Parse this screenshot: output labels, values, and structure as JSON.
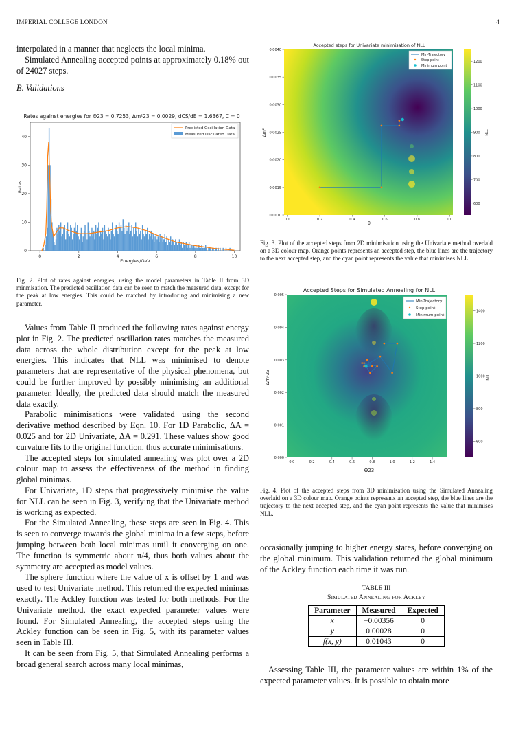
{
  "header": {
    "institution": "IMPERIAL COLLEGE LONDON",
    "page_number": "4"
  },
  "left": {
    "p1": "interpolated in a manner that neglects the local minima.",
    "p2": "Simulated Annealing accepted points at approximately 0.18% out of 24027 steps.",
    "section": "B. Validations",
    "fig2_caption": "Fig. 2.   Plot of rates against energies, using the model parameters in Table II from 3D minmisation. The predicted oscillation data can be seen to match the measured data, except for the peak at low energies. This could be matched by introducing and minimising a new parameter.",
    "p3": "Values from Table II produced the following rates against energy plot in Fig. 2. The predicted oscillation rates matches the measured data across the whole distribution except for the peak at low energies. This indicates that NLL was minimised to denote parameters that are representative of the physical phenomena, but could be further improved by possibly minimising an additional parameter. Ideally, the predicted data should match the measured data exactly.",
    "p4": "Parabolic minimisations were validated using the second derivative method described by Eqn. 10. For 1D Parabolic, ΔA = 0.025 and for 2D Univariate, ΔA = 0.291. These values show good curvature fits to the original function, thus accurate minimisations.",
    "p5": "The accepted steps for simulated annealing was plot over a 2D colour map to assess the effectiveness of the method in finding global minimas.",
    "p6": "For Univariate, 1D steps that progressively minimise the value for NLL can be seen in Fig. 3, verifying that the Univariate method is working as expected.",
    "p7": "For the Simulated Annealing, these steps are seen in Fig. 4. This is seen to converge towards the global minima in a few steps, before jumping between both local minimas until it converging on one. The function is symmetric about π/4, thus both values about the symmetry are accepted as model values.",
    "p8": "The sphere function where the value of x is offset by 1 and was used to test Univariate method. This returned the expected minimas exactly. The Ackley function was tested for both methods. For the Univariate method, the exact expected parameter values were found. For Simulated Annealing, the accepted steps using the Ackley function can be seen in Fig. 5, with its parameter values seen in Table III.",
    "p9": "It can be seen from Fig. 5, that Simulated Annealing performs a broad general search across many local minimas,"
  },
  "right": {
    "fig3_caption": "Fig. 3.   Plot of the accepted steps from 2D minimisation using the Univariate method overlaid on a 3D colour map. Orange points represents an accepted step, the blue lines are the trajectory to the next accepted step, and the cyan point represents the value that minimises NLL.",
    "fig4_caption": "Fig. 4.   Plot of the accepted steps from 3D minimisation using the Simulated Annealing overlaid on a 3D colour map. Orange points represents an accepted step, the blue lines are the trajectory to the next accepted step, and the cyan point represents the value that minimises NLL.",
    "p1": "occasionally jumping to higher energy states, before converging on the global minimum. This validation returned the global minimum of the Ackley function each time it was run.",
    "table_label": "TABLE III",
    "table_title": "Simulated Annealing for Ackley",
    "table_headers": [
      "Parameter",
      "Measured",
      "Expected"
    ],
    "table_rows": [
      [
        "x",
        "−0.00356",
        "0"
      ],
      [
        "y",
        "0.00028",
        "0"
      ],
      [
        "f(x, y)",
        "0.01043",
        "0"
      ]
    ],
    "p2": "Assessing Table III, the parameter values are within 1% of the expected parameter values. It is possible to obtain more"
  },
  "chart_data": [
    {
      "type": "bar",
      "title": "Rates against energies for Θ23 = 0.7253, Δm²23 = 0.0029, dCS/dE = 1.6367, C = 0",
      "xlabel": "Energies/GeV",
      "ylabel": "Rates",
      "xlim": [
        0,
        10
      ],
      "ylim": [
        0,
        45
      ],
      "xticks": [
        "0",
        "2",
        "4",
        "6",
        "8",
        "10"
      ],
      "yticks": [
        "0",
        "10",
        "20",
        "30",
        "40"
      ],
      "legend_position": "top-right",
      "series": [
        {
          "name": "Predicted Oscillation Data",
          "kind": "line",
          "color": "#ff7f0e"
        },
        {
          "name": "Measured Oscillated Data",
          "kind": "bar",
          "color": "#5b9bd5"
        }
      ],
      "measured_x": [
        0.025,
        0.075,
        0.125,
        0.175,
        0.225,
        0.275,
        0.325,
        0.375,
        0.425,
        0.475,
        0.525,
        0.575,
        0.625,
        0.675,
        0.725,
        0.775,
        0.825,
        0.875,
        0.925,
        0.975,
        1.025,
        1.075,
        1.125,
        1.175,
        1.225,
        1.275,
        1.325,
        1.375,
        1.425,
        1.475,
        1.525,
        1.575,
        1.625,
        1.675,
        1.725,
        1.775,
        1.825,
        1.875,
        1.925,
        1.975,
        2.025,
        2.075,
        2.125,
        2.175,
        2.225,
        2.275,
        2.325,
        2.375,
        2.425,
        2.475,
        2.525,
        2.575,
        2.625,
        2.675,
        2.725,
        2.775,
        2.825,
        2.875,
        2.925,
        2.975,
        3.025,
        3.075,
        3.125,
        3.175,
        3.225,
        3.275,
        3.325,
        3.375,
        3.425,
        3.475,
        3.525,
        3.575,
        3.625,
        3.675,
        3.725,
        3.775,
        3.825,
        3.875,
        3.925,
        3.975,
        4.025,
        4.075,
        4.125,
        4.175,
        4.225,
        4.275,
        4.325,
        4.375,
        4.425,
        4.475,
        4.525,
        4.575,
        4.625,
        4.675,
        4.725,
        4.775,
        4.825,
        4.875,
        4.925,
        4.975,
        5.025,
        5.075,
        5.125,
        5.175,
        5.225,
        5.275,
        5.325,
        5.375,
        5.425,
        5.475,
        5.525,
        5.575,
        5.625,
        5.675,
        5.725,
        5.775,
        5.825,
        5.875,
        5.925,
        5.975,
        6.025,
        6.075,
        6.125,
        6.175,
        6.225,
        6.275,
        6.325,
        6.375,
        6.425,
        6.475,
        6.525,
        6.575,
        6.625,
        6.675,
        6.725,
        6.775,
        6.825,
        6.875,
        6.925,
        6.975,
        7.025,
        7.075,
        7.125,
        7.175,
        7.225,
        7.275,
        7.325,
        7.375,
        7.425,
        7.475,
        7.525,
        7.575,
        7.625,
        7.675,
        7.725,
        7.775,
        7.825,
        7.875,
        7.925,
        7.975,
        8.025,
        8.075,
        8.125,
        8.175,
        8.225,
        8.275,
        8.325,
        8.375,
        8.425,
        8.475,
        8.525,
        8.575,
        8.625,
        8.675,
        8.725,
        8.775,
        8.825,
        8.875,
        8.925,
        8.975,
        9.025,
        9.075,
        9.125,
        9.175,
        9.225,
        9.275,
        9.325,
        9.375,
        9.425,
        9.475,
        9.525,
        9.575,
        9.625,
        9.675,
        9.725,
        9.775,
        9.825,
        9.875,
        9.925,
        9.975
      ],
      "measured_y": [
        0,
        0,
        0,
        1,
        0,
        2,
        5,
        8,
        30,
        43,
        30,
        18,
        10,
        6,
        3,
        2,
        4,
        8,
        6,
        9,
        7,
        10,
        5,
        6,
        8,
        9,
        4,
        7,
        10,
        6,
        5,
        9,
        8,
        4,
        6,
        8,
        10,
        7,
        9,
        5,
        4,
        6,
        8,
        3,
        5,
        7,
        9,
        6,
        4,
        10,
        7,
        5,
        6,
        8,
        5,
        7,
        4,
        9,
        6,
        8,
        10,
        5,
        7,
        6,
        8,
        4,
        9,
        7,
        6,
        5,
        8,
        6,
        4,
        7,
        10,
        6,
        5,
        8,
        9,
        7,
        6,
        10,
        8,
        9,
        7,
        11,
        8,
        6,
        9,
        7,
        8,
        10,
        6,
        7,
        9,
        5,
        8,
        6,
        10,
        7,
        5,
        8,
        6,
        7,
        4,
        9,
        6,
        5,
        7,
        6,
        8,
        4,
        6,
        5,
        7,
        4,
        6,
        3,
        5,
        6,
        4,
        5,
        3,
        6,
        4,
        5,
        3,
        4,
        6,
        3,
        5,
        2,
        4,
        3,
        5,
        2,
        4,
        3,
        2,
        4,
        3,
        2,
        3,
        4,
        2,
        3,
        1,
        3,
        2,
        2,
        3,
        1,
        2,
        3,
        1,
        2,
        2,
        1,
        2,
        1,
        2,
        1,
        1,
        2,
        1,
        1,
        2,
        1,
        1,
        1,
        2,
        1,
        0,
        1,
        1,
        1,
        0,
        1,
        1,
        0,
        1,
        1,
        0,
        1,
        0,
        1,
        0,
        0,
        1,
        0,
        0,
        1,
        0,
        0,
        0,
        1,
        0,
        0,
        0,
        0
      ],
      "predicted_x": [
        0.1,
        0.2,
        0.3,
        0.35,
        0.4,
        0.45,
        0.5,
        0.55,
        0.6,
        0.7,
        0.8,
        1.0,
        1.2,
        1.5,
        2.0,
        2.5,
        3.0,
        3.5,
        4.0,
        4.5,
        5.0,
        5.5,
        6.0,
        7.0,
        8.0,
        9.0,
        10.0
      ],
      "predicted_y": [
        0,
        2,
        6,
        15,
        33,
        38,
        28,
        15,
        9,
        5,
        6,
        8,
        8,
        7,
        6,
        6,
        6.5,
        7,
        8,
        8.5,
        8,
        7,
        5.5,
        3,
        1.8,
        0.8,
        0.2
      ]
    },
    {
      "type": "heatmap",
      "title": "Accepted steps for Univariate minimisation of NLL",
      "xlabel": "θ",
      "ylabel": "Δm²",
      "xlim": [
        0,
        1.0
      ],
      "ylim": [
        0.001,
        0.004
      ],
      "xticks": [
        "0.0",
        "0.2",
        "0.4",
        "0.6",
        "0.8",
        "1.0"
      ],
      "yticks": [
        "0.0010",
        "0.0015",
        "0.0020",
        "0.0025",
        "0.0030",
        "0.0035",
        "0.0040"
      ],
      "colorbar": {
        "label": "NLL",
        "ticks": [
          "600",
          "700",
          "800",
          "900",
          "1000",
          "1100",
          "1200"
        ]
      },
      "legend_position": "top-right",
      "legend": [
        "Min-Trajectory",
        "Step point",
        "Minimum point"
      ],
      "trajectory_theta": [
        0.2,
        0.58,
        0.58,
        0.69,
        0.69,
        0.71
      ],
      "trajectory_dm2": [
        0.0015,
        0.0015,
        0.00262,
        0.00262,
        0.00271,
        0.00273
      ],
      "minimum": [
        0.71,
        0.00273
      ]
    },
    {
      "type": "heatmap",
      "title": "Accepted Steps for Simulated Annealing for NLL",
      "xlabel": "Θ23",
      "ylabel": "Δm²23",
      "xlim": [
        0,
        1.5
      ],
      "ylim": [
        0,
        0.005
      ],
      "xticks": [
        "0.0",
        "0.2",
        "0.4",
        "0.6",
        "0.8",
        "1.0",
        "1.2",
        "1.4"
      ],
      "yticks": [
        "0.000",
        "0.001",
        "0.002",
        "0.003",
        "0.004",
        "0.005"
      ],
      "colorbar": {
        "label": "NLL",
        "ticks": [
          "600",
          "800",
          "1000",
          "1200",
          "1400"
        ]
      },
      "legend_position": "top-right",
      "legend": [
        "Min-Trajectory",
        "Step point",
        "Minimum point"
      ],
      "trajectory_theta": [
        0.92,
        1.05,
        1.0,
        0.88,
        0.72,
        0.75,
        0.8,
        0.7,
        0.85,
        0.78,
        0.72,
        0.8,
        0.73,
        0.74
      ],
      "trajectory_dm2": [
        0.0035,
        0.0035,
        0.0026,
        0.0031,
        0.0028,
        0.003,
        0.0028,
        0.0029,
        0.0028,
        0.0026,
        0.0029,
        0.0028,
        0.0028,
        0.0028
      ],
      "minimum": [
        0.74,
        0.0028
      ]
    }
  ]
}
